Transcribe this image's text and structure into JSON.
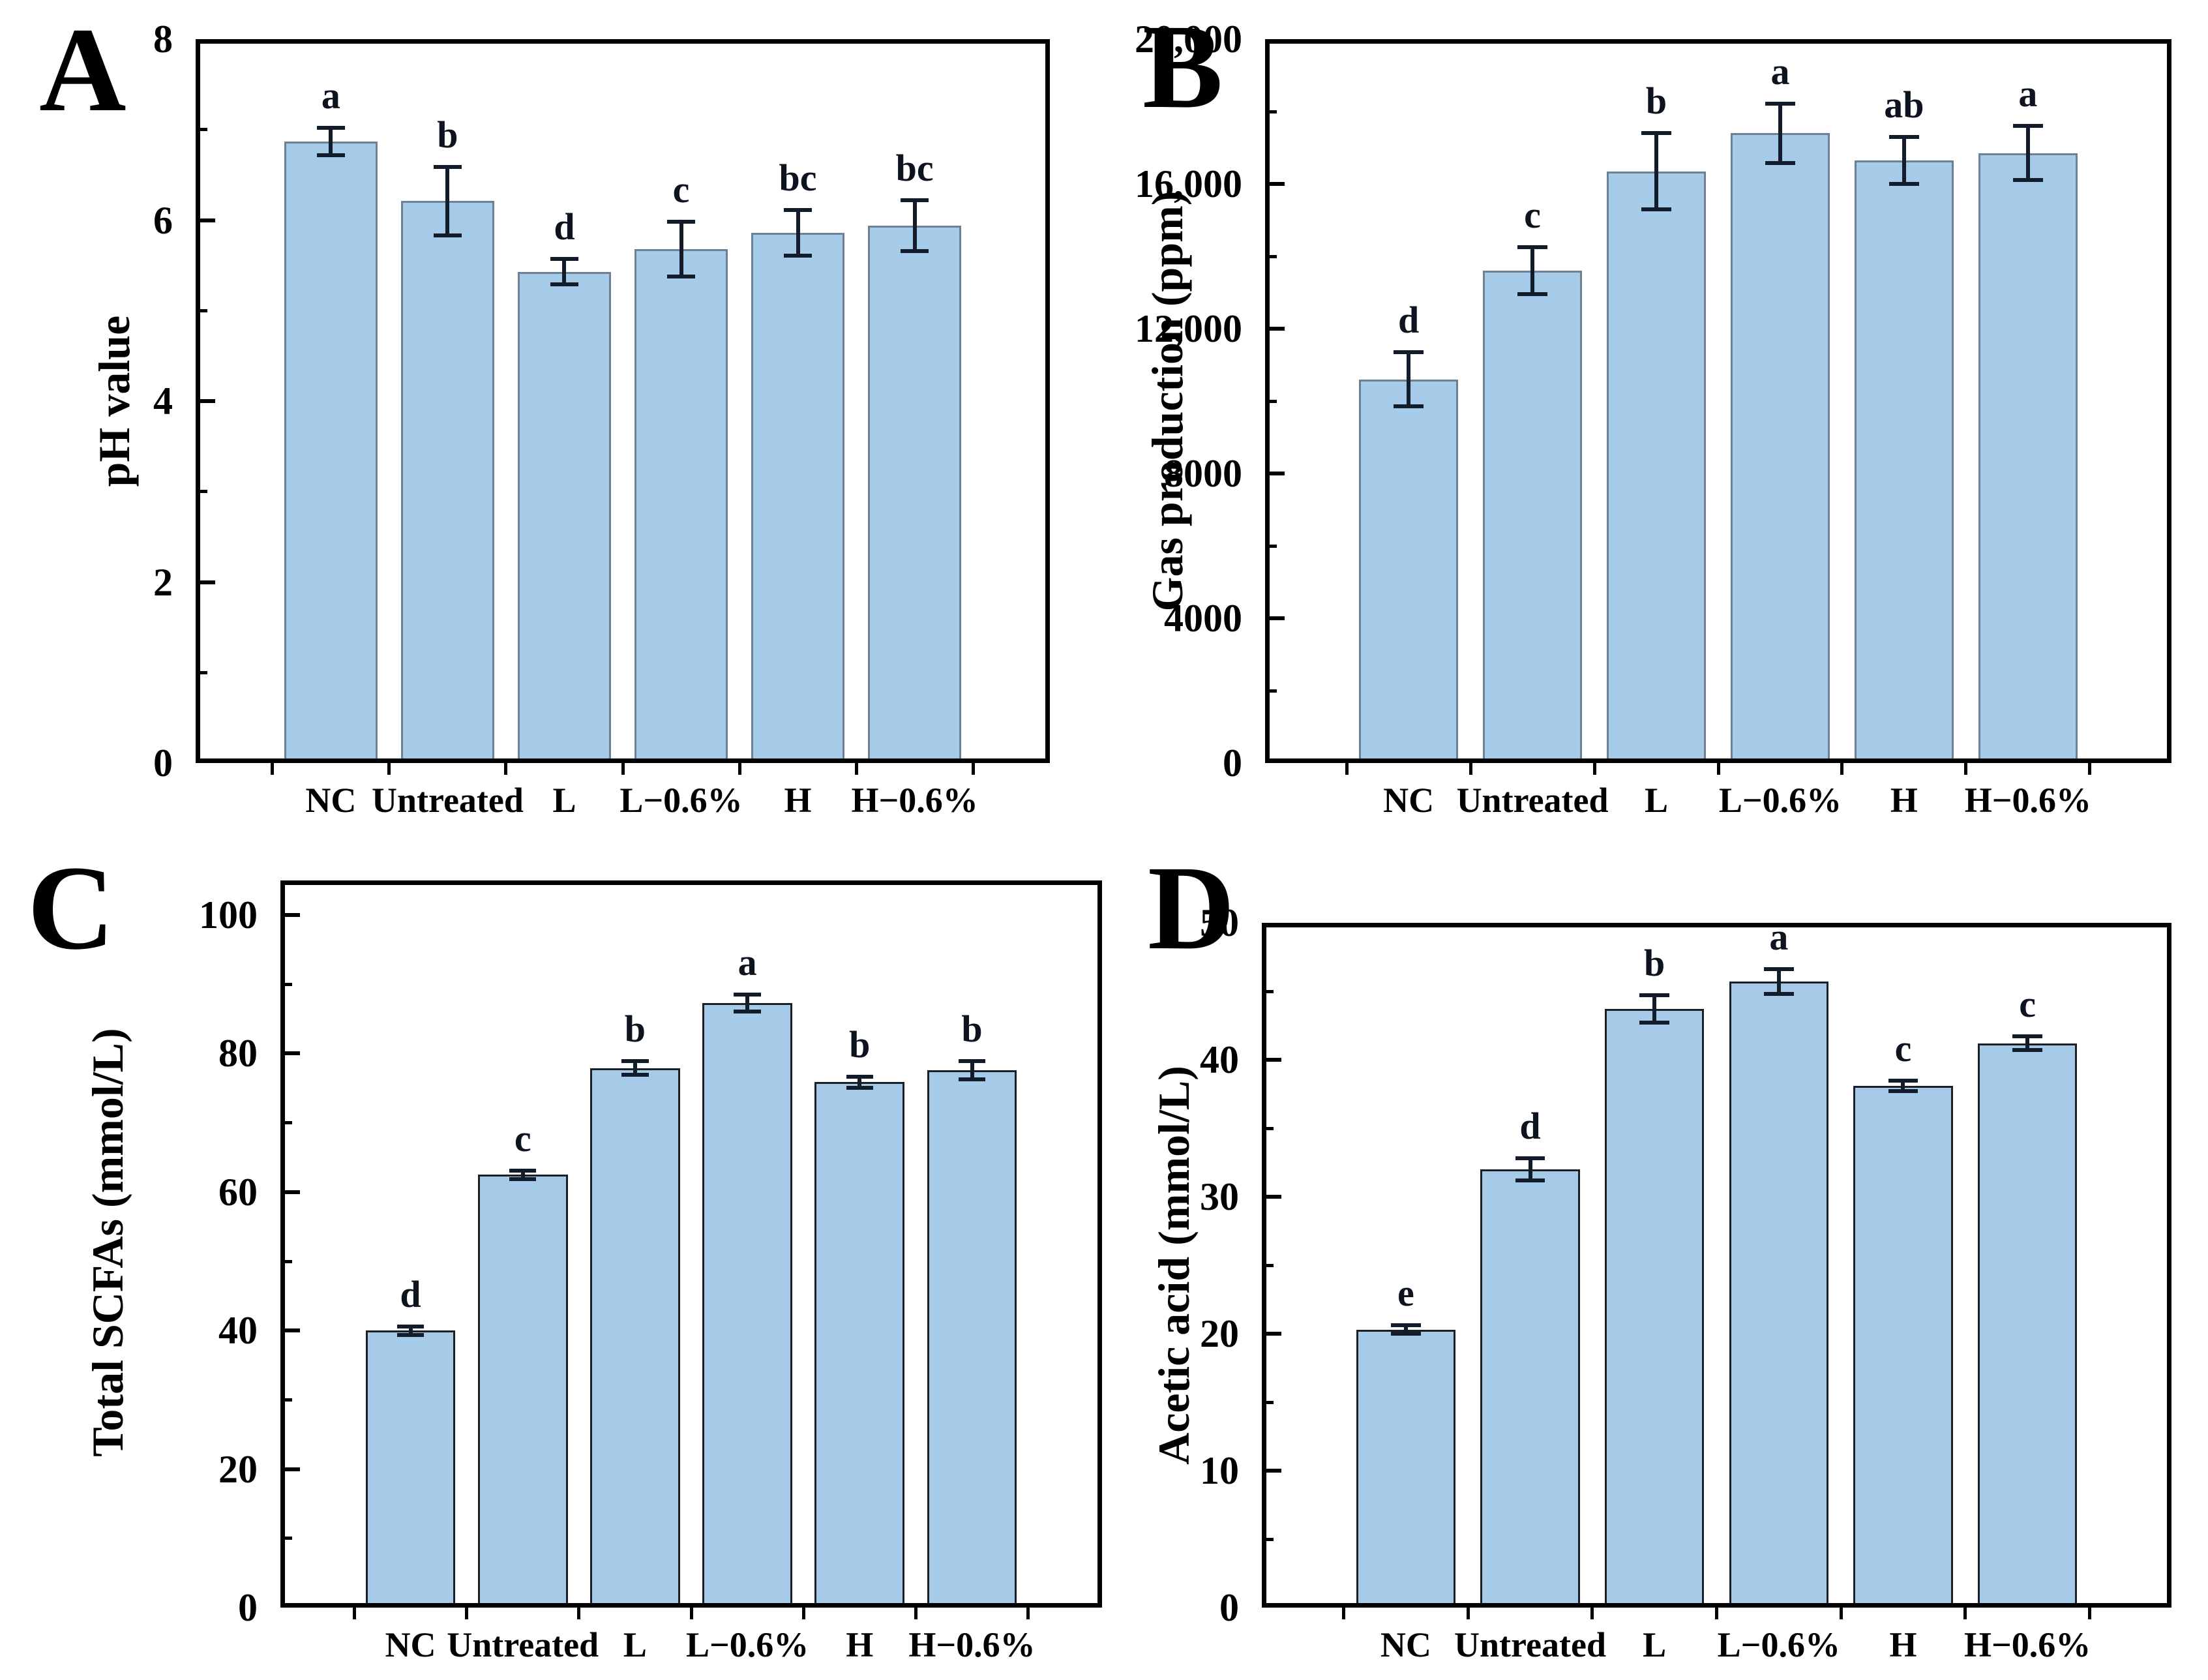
{
  "figure_type": "four-panel bar chart figure",
  "colors": {
    "bar_fill": "#a6cbe9",
    "bar_border_top_panels": "#6e8094",
    "bar_border_bottom_panels": "#1c2026",
    "error_bar": "#131c2b",
    "axis": "#000000",
    "background": "#ffffff"
  },
  "chart_data": [
    {
      "type": "bar",
      "panel_letter": "A",
      "ylabel": "pH value",
      "xlabel": "",
      "ylim": [
        0,
        8
      ],
      "grid": false,
      "legend": "none",
      "yticks": [
        {
          "v": 0,
          "label": "0"
        },
        {
          "v": 2,
          "label": "2"
        },
        {
          "v": 4,
          "label": "4"
        },
        {
          "v": 6,
          "label": "6"
        },
        {
          "v": 8,
          "label": "8"
        }
      ],
      "minor_ticks": [
        1,
        3,
        5,
        7
      ],
      "categories": [
        "NC",
        "Untreated",
        "L",
        "L−0.6%",
        "H",
        "H−0.6%"
      ],
      "values": [
        6.87,
        6.21,
        5.43,
        5.68,
        5.86,
        5.94
      ],
      "errors": [
        0.15,
        0.38,
        0.14,
        0.3,
        0.25,
        0.28
      ],
      "sig_letters": [
        "a",
        "b",
        "d",
        "c",
        "bc",
        "bc"
      ]
    },
    {
      "type": "bar",
      "panel_letter": "B",
      "ylabel": "Gas production (ppm)",
      "xlabel": "",
      "ylim": [
        0,
        20000
      ],
      "grid": false,
      "legend": "none",
      "yticks": [
        {
          "v": 0,
          "label": "0"
        },
        {
          "v": 4000,
          "label": "4000"
        },
        {
          "v": 8000,
          "label": "8000"
        },
        {
          "v": 12000,
          "label": "12,000"
        },
        {
          "v": 16000,
          "label": "16,000"
        },
        {
          "v": 20000,
          "label": "20,000"
        }
      ],
      "minor_ticks": [
        2000,
        6000,
        10000,
        14000,
        18000
      ],
      "categories": [
        "NC",
        "Untreated",
        "L",
        "L−0.6%",
        "H",
        "H−0.6%"
      ],
      "values": [
        10600,
        13600,
        16350,
        17400,
        16650,
        16850
      ],
      "errors": [
        750,
        650,
        1050,
        820,
        650,
        750
      ],
      "sig_letters": [
        "d",
        "c",
        "b",
        "a",
        "ab",
        "a"
      ]
    },
    {
      "type": "bar",
      "panel_letter": "C",
      "ylabel": "Total SCFAs (mmol/L)",
      "xlabel": "",
      "ylim": [
        0,
        105
      ],
      "grid": false,
      "legend": "none",
      "yticks": [
        {
          "v": 0,
          "label": "0"
        },
        {
          "v": 20,
          "label": "20"
        },
        {
          "v": 40,
          "label": "40"
        },
        {
          "v": 60,
          "label": "60"
        },
        {
          "v": 80,
          "label": "80"
        },
        {
          "v": 100,
          "label": "100"
        }
      ],
      "minor_ticks": [
        10,
        30,
        50,
        70,
        90
      ],
      "categories": [
        "NC",
        "Untreated",
        "L",
        "L−0.6%",
        "H",
        "H−0.6%"
      ],
      "values": [
        40.0,
        62.5,
        77.9,
        87.3,
        75.9,
        77.6
      ],
      "errors": [
        0.6,
        0.6,
        1.0,
        1.2,
        0.8,
        1.3
      ],
      "sig_letters": [
        "d",
        "c",
        "b",
        "a",
        "b",
        "b"
      ]
    },
    {
      "type": "bar",
      "panel_letter": "D",
      "ylabel": "Acetic acid (mmol/L)",
      "xlabel": "",
      "ylim": [
        0,
        50
      ],
      "grid": false,
      "legend": "none",
      "yticks": [
        {
          "v": 0,
          "label": "0"
        },
        {
          "v": 10,
          "label": "10"
        },
        {
          "v": 20,
          "label": "20"
        },
        {
          "v": 30,
          "label": "30"
        },
        {
          "v": 40,
          "label": "40"
        },
        {
          "v": 50,
          "label": "50"
        }
      ],
      "minor_ticks": [
        5,
        15,
        25,
        35,
        45
      ],
      "categories": [
        "NC",
        "Untreated",
        "L",
        "L−0.6%",
        "H",
        "H−0.6%"
      ],
      "values": [
        20.3,
        32.0,
        43.7,
        45.7,
        38.1,
        41.2
      ],
      "errors": [
        0.3,
        0.8,
        1.0,
        0.9,
        0.4,
        0.5
      ],
      "sig_letters": [
        "e",
        "d",
        "b",
        "a",
        "c",
        "c"
      ]
    }
  ]
}
